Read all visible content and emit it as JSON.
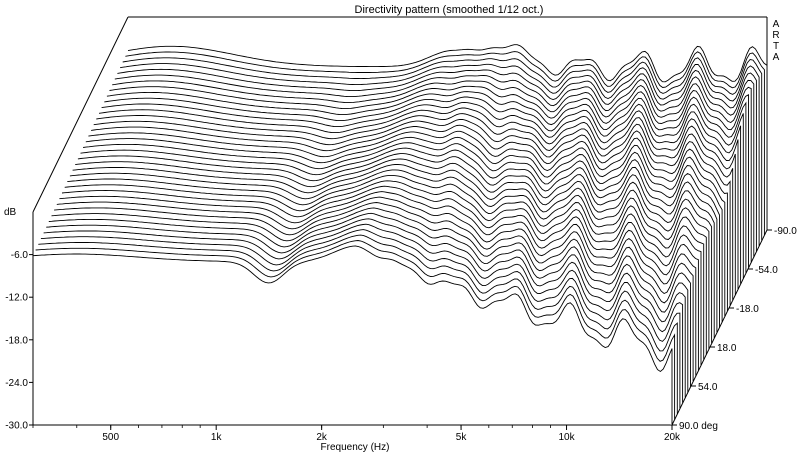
{
  "chart_data": {
    "type": "waterfall",
    "title": "Directivity pattern (smoothed 1/12 oct.)",
    "watermark": "ARTA",
    "xlabel": "Frequency (Hz)",
    "ylabel": "dB",
    "zlabel": "deg",
    "x_scale": "log",
    "xlim": [
      300,
      20000
    ],
    "ylim": [
      -30,
      0
    ],
    "x_ticks": [
      {
        "value": 500,
        "label": "500"
      },
      {
        "value": 1000,
        "label": "1k"
      },
      {
        "value": 2000,
        "label": "2k"
      },
      {
        "value": 5000,
        "label": "5k"
      },
      {
        "value": 10000,
        "label": "10k"
      },
      {
        "value": 20000,
        "label": "20k"
      }
    ],
    "y_ticks": [
      {
        "value": -6,
        "label": "-6.0"
      },
      {
        "value": -12,
        "label": "-12.0"
      },
      {
        "value": -18,
        "label": "-18.0"
      },
      {
        "value": -24,
        "label": "-24.0"
      },
      {
        "value": -30,
        "label": "-30.0"
      }
    ],
    "angle_range": [
      -90,
      90
    ],
    "angle_step": 5,
    "angle_ticks": [
      {
        "value": 90,
        "label": "90.0 deg"
      },
      {
        "value": 54,
        "label": "54.0"
      },
      {
        "value": 18,
        "label": "18.0"
      },
      {
        "value": -18,
        "label": "-18.0"
      },
      {
        "value": -54,
        "label": "-54.0"
      },
      {
        "value": -90,
        "label": "-90.0"
      }
    ],
    "grid": false
  }
}
